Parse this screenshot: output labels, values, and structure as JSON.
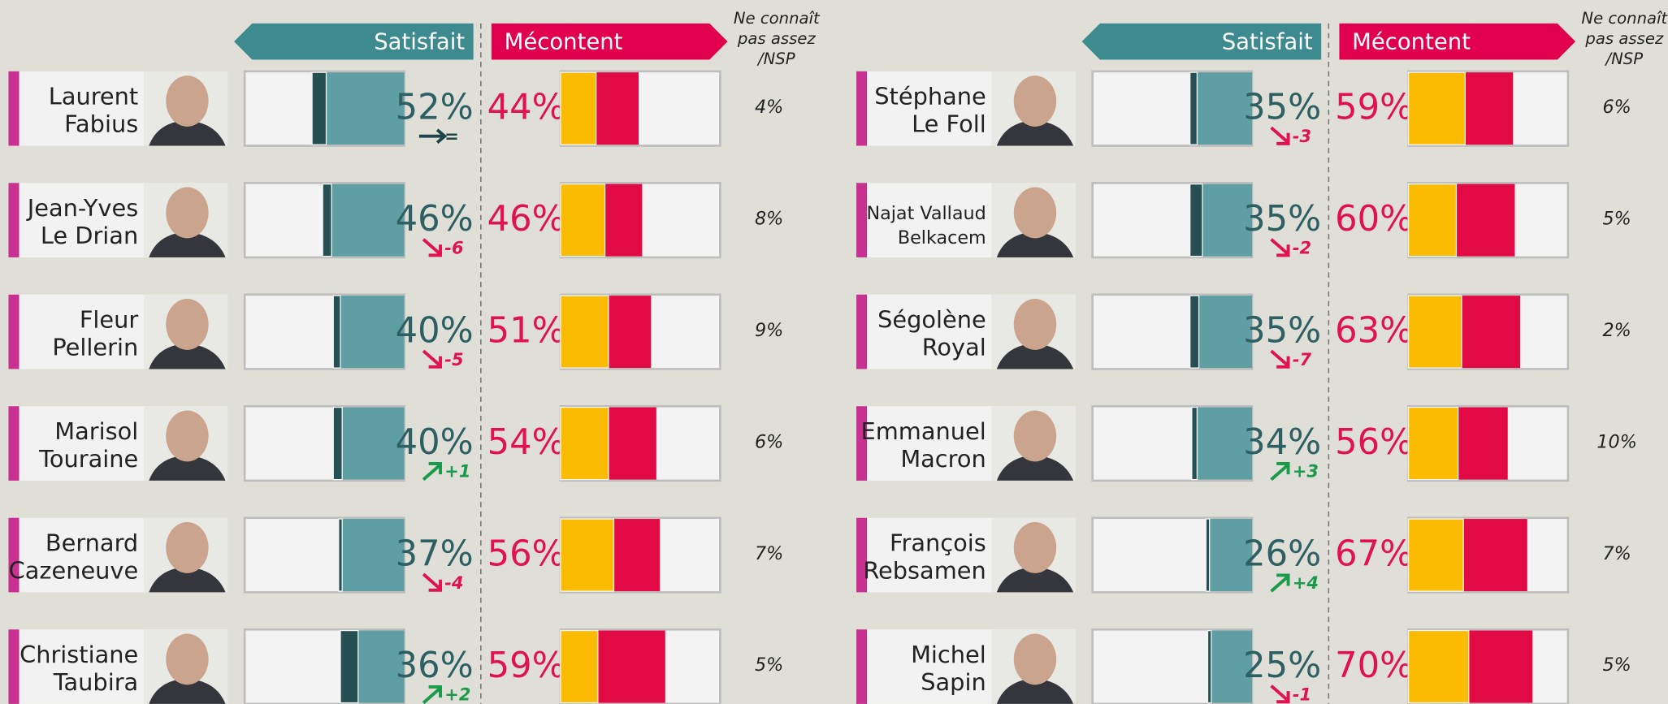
{
  "chart_data": [
    {
      "type": "diverging_bar",
      "categories": [
        [
          "Laurent",
          "Fabius"
        ],
        [
          "Jean-Yves",
          "Le Drian"
        ],
        [
          "Fleur",
          "Pellerin"
        ],
        [
          "Marisol",
          "Touraine"
        ],
        [
          "Bernard",
          "Cazeneuve"
        ],
        [
          "Christiane",
          "Taubira"
        ]
      ],
      "xlim": [
        0,
        90
      ],
      "series": [
        {
          "name": "Satisfait",
          "color": "#5f9ea3",
          "values": [
            52,
            46,
            40,
            40,
            37,
            36
          ],
          "value_labels": [
            "52%",
            "46%",
            "40%",
            "40%",
            "37%",
            "36%"
          ],
          "segment": {
            "color": "#264f53",
            "values": [
              8,
              5,
              4,
              5,
              2,
              10
            ]
          },
          "changes": [
            "=",
            "-6",
            "-5",
            "+1",
            "-4",
            "+2"
          ]
        },
        {
          "name": "Mécontent",
          "color": "#e20a45",
          "values": [
            44,
            46,
            51,
            54,
            56,
            59
          ],
          "value_labels": [
            "44%",
            "46%",
            "51%",
            "54%",
            "56%",
            "59%"
          ],
          "segment": {
            "color": "#fbbb00",
            "values": [
              20,
              25,
              27,
              27,
              30,
              21
            ]
          }
        }
      ],
      "nsp": {
        "label": [
          "Ne connaît",
          "pas assez",
          "/NSP"
        ],
        "values": [
          4,
          8,
          9,
          6,
          7,
          5
        ],
        "value_labels": [
          "4%",
          "8%",
          "9%",
          "6%",
          "7%",
          "5%"
        ]
      }
    },
    {
      "type": "diverging_bar",
      "categories": [
        [
          "Stéphane",
          "Le Foll"
        ],
        [
          "Najat Vallaud",
          "Belkacem"
        ],
        [
          "Ségolène",
          "Royal"
        ],
        [
          "Emmanuel",
          "Macron"
        ],
        [
          "François",
          "Rebsamen"
        ],
        [
          "Michel",
          "Sapin"
        ]
      ],
      "xlim": [
        0,
        90
      ],
      "series": [
        {
          "name": "Satisfait",
          "color": "#5f9ea3",
          "values": [
            35,
            35,
            35,
            34,
            26,
            25
          ],
          "value_labels": [
            "35%",
            "35%",
            "35%",
            "34%",
            "26%",
            "25%"
          ],
          "segment": {
            "color": "#264f53",
            "values": [
              4,
              7,
              5,
              3,
              2,
              2
            ]
          },
          "changes": [
            "-3",
            "-2",
            "-7",
            "+3",
            "+4",
            "-1"
          ]
        },
        {
          "name": "Mécontent",
          "color": "#e20a45",
          "values": [
            59,
            60,
            63,
            56,
            67,
            70
          ],
          "value_labels": [
            "59%",
            "60%",
            "63%",
            "56%",
            "67%",
            "70%"
          ],
          "segment": {
            "color": "#fbbb00",
            "values": [
              32,
              27,
              30,
              28,
              31,
              34
            ]
          }
        }
      ],
      "nsp": {
        "label": [
          "Ne connaît",
          "pas assez",
          "/NSP"
        ],
        "values": [
          6,
          5,
          2,
          10,
          7,
          5
        ],
        "value_labels": [
          "6%",
          "5%",
          "2%",
          "10%",
          "7%",
          "5%"
        ]
      }
    }
  ]
}
